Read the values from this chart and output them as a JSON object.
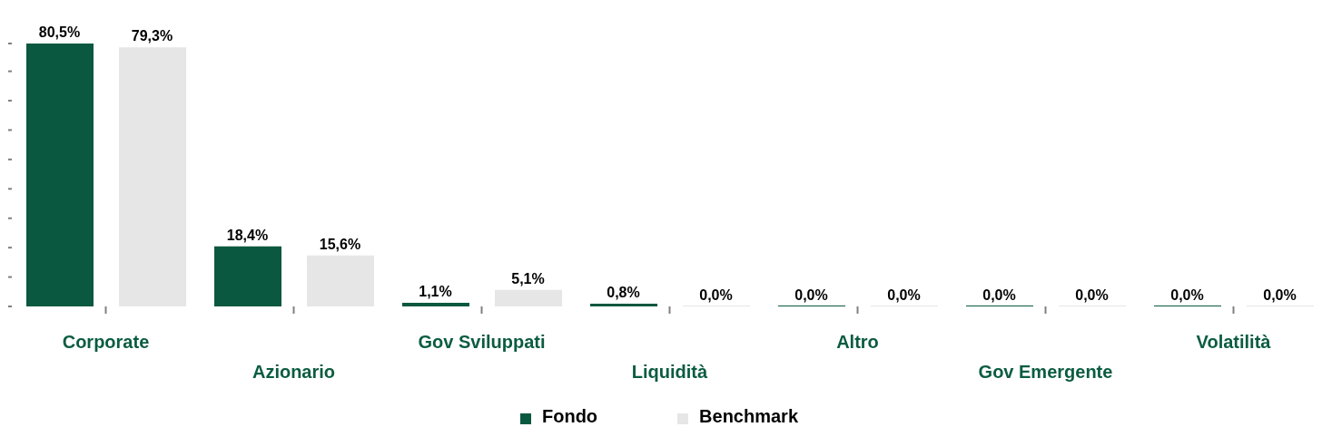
{
  "chart_data": {
    "type": "bar",
    "categories": [
      "Corporate",
      "Azionario",
      "Gov Sviluppati",
      "Liquidità",
      "Altro",
      "Gov Emergente",
      "Volatilità"
    ],
    "series": [
      {
        "name": "Fondo",
        "color": "#0b5840",
        "values": [
          80.5,
          18.4,
          1.1,
          0.8,
          0,
          0,
          0
        ],
        "value_labels": [
          "80,5%",
          "18,4%",
          "1,1%",
          "0,8%",
          "0,0%",
          "0,0%",
          "0,0%"
        ]
      },
      {
        "name": "Benchmark",
        "color": "#e6e6e6",
        "values": [
          79.3,
          15.6,
          5.1,
          0,
          0,
          0,
          0
        ],
        "value_labels": [
          "79,3%",
          "15,6%",
          "5,1%",
          "0,0%",
          "0,0%",
          "0,0%",
          "0,0%"
        ]
      }
    ],
    "tick_labels": "x",
    "legend": "bottom"
  }
}
